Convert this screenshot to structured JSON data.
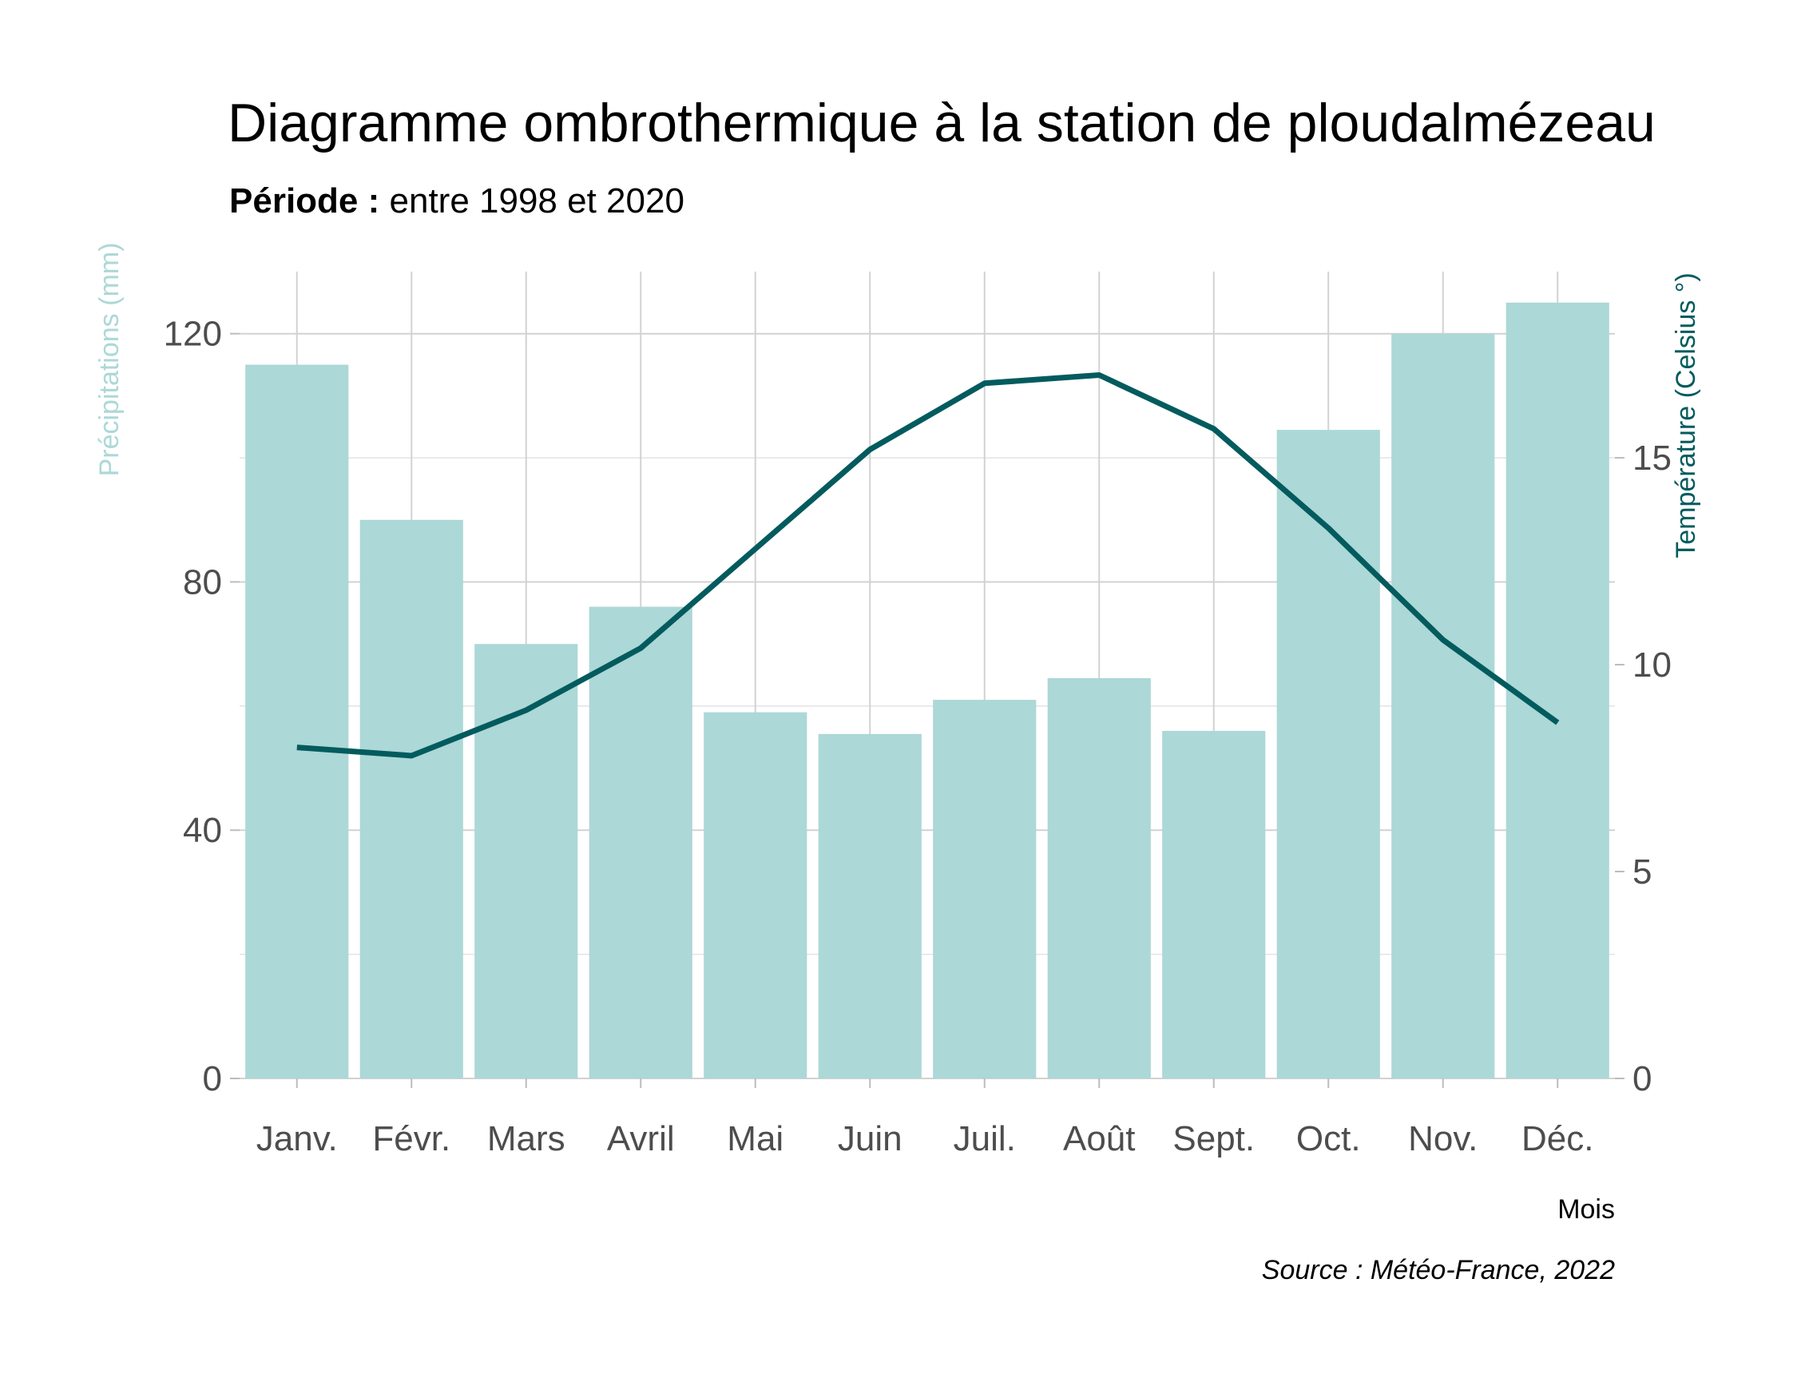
{
  "chart_data": {
    "type": "bar",
    "title": "Diagramme ombrothermique à la station de ploudalmézeau",
    "subtitle_bold": "Période :",
    "subtitle_rest": " entre 1998 et 2020",
    "xlabel": "Mois",
    "ylabel_left": "Précipitations (mm)",
    "ylabel_right": "Température (Celsius °)",
    "caption": "Source : Météo-France, 2022",
    "categories": [
      "Janv.",
      "Févr.",
      "Mars",
      "Avril",
      "Mai",
      "Juin",
      "Juil.",
      "Août",
      "Sept.",
      "Oct.",
      "Nov.",
      "Déc."
    ],
    "ylim_left": [
      0,
      130
    ],
    "yticks_left": [
      0,
      40,
      80,
      120
    ],
    "ylim_right": [
      0,
      19.5
    ],
    "yticks_right": [
      0,
      5,
      10,
      15
    ],
    "grid": true,
    "series": [
      {
        "name": "Précipitations (mm)",
        "type": "bar",
        "axis": "left",
        "color": "#acd8d7",
        "values": [
          115,
          90,
          70,
          76,
          59,
          55.5,
          61,
          64.5,
          56,
          104.5,
          120,
          125
        ]
      },
      {
        "name": "Température (Celsius °)",
        "type": "line",
        "axis": "right",
        "color": "#035b5e",
        "values": [
          8.0,
          7.8,
          8.9,
          10.4,
          12.8,
          15.2,
          16.8,
          17.0,
          15.7,
          13.3,
          10.6,
          8.6
        ]
      }
    ]
  },
  "colors": {
    "bar": "#acd8d7",
    "line": "#035b5e",
    "left_axis_title": "#acd8d7",
    "right_axis_title": "#035b5e"
  }
}
